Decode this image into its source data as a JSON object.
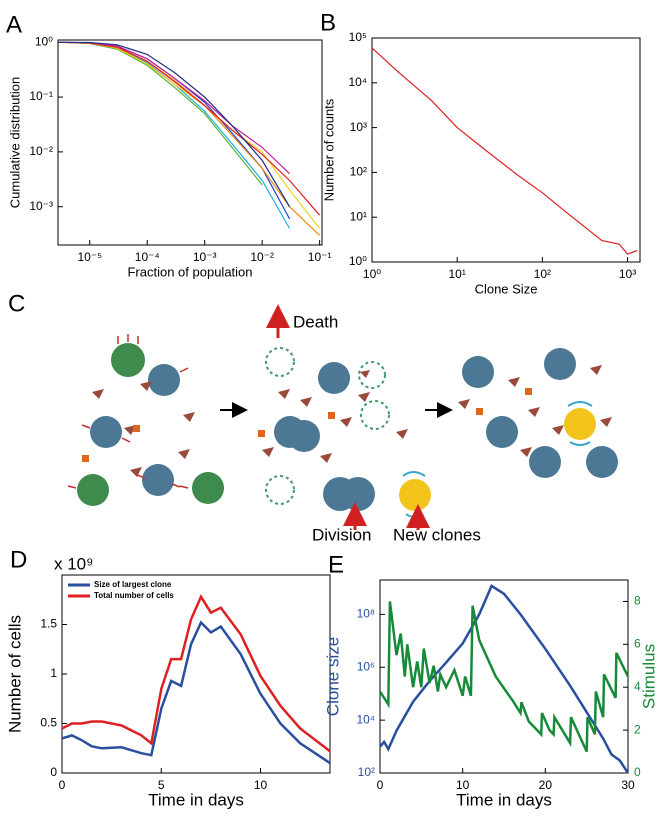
{
  "chart_data": [
    {
      "type": "line",
      "panel": "A",
      "xlabel": "Fraction of population",
      "ylabel": "Cumulative distribution",
      "xscale": "log",
      "yscale": "log",
      "xlim": [
        2.8e-06,
        0.11
      ],
      "ylim": [
        0.0002,
        1.1
      ],
      "xticks": [
        {
          "value": 1e-05,
          "label": "10⁻⁵"
        },
        {
          "value": 0.0001,
          "label": "10⁻⁴"
        },
        {
          "value": 0.001,
          "label": "10⁻³"
        },
        {
          "value": 0.01,
          "label": "10⁻²"
        },
        {
          "value": 0.1,
          "label": "10⁻¹"
        }
      ],
      "yticks": [
        {
          "value": 1,
          "label": "10⁰"
        },
        {
          "value": 0.1,
          "label": "10⁻¹"
        },
        {
          "value": 0.01,
          "label": "10⁻²"
        },
        {
          "value": 0.001,
          "label": "10⁻³"
        }
      ],
      "x": [
        3e-06,
        1e-05,
        3e-05,
        0.0001,
        0.0003,
        0.001,
        0.003,
        0.01,
        0.03,
        0.1
      ],
      "series": [
        {
          "color": "#1f3fd0",
          "values": [
            1,
            0.98,
            0.85,
            0.5,
            0.22,
            0.08,
            0.022,
            0.005,
            0.0006,
            null
          ]
        },
        {
          "color": "#19b0e0",
          "values": [
            1,
            0.97,
            0.8,
            0.42,
            0.17,
            0.055,
            0.014,
            0.003,
            0.0004,
            null
          ]
        },
        {
          "color": "#5cb030",
          "values": [
            1,
            0.95,
            0.75,
            0.38,
            0.15,
            0.05,
            0.012,
            0.0025,
            null,
            null
          ]
        },
        {
          "color": "#f0d020",
          "values": [
            1,
            0.96,
            0.78,
            0.4,
            0.17,
            0.07,
            0.025,
            0.01,
            0.002,
            0.0004
          ]
        },
        {
          "color": "#f08a10",
          "values": [
            1,
            0.96,
            0.8,
            0.45,
            0.2,
            0.07,
            0.02,
            0.005,
            0.001,
            0.0003
          ]
        },
        {
          "color": "#e02020",
          "values": [
            1,
            0.97,
            0.82,
            0.45,
            0.19,
            0.07,
            0.025,
            0.009,
            0.003,
            0.0007
          ]
        },
        {
          "color": "#c020a0",
          "values": [
            1,
            0.98,
            0.85,
            0.5,
            0.22,
            0.085,
            0.03,
            0.012,
            0.004,
            null
          ]
        },
        {
          "color": "#203080",
          "values": [
            1,
            0.99,
            0.9,
            0.6,
            0.28,
            0.1,
            0.03,
            0.007,
            0.001,
            null
          ]
        }
      ]
    },
    {
      "type": "line",
      "panel": "B",
      "xlabel": "Clone Size",
      "ylabel": "Number of counts",
      "xscale": "log",
      "yscale": "log",
      "xlim": [
        1,
        1400
      ],
      "ylim": [
        1,
        100000
      ],
      "xticks": [
        {
          "value": 1,
          "label": "10⁰"
        },
        {
          "value": 10,
          "label": "10¹"
        },
        {
          "value": 100,
          "label": "10²"
        },
        {
          "value": 1000,
          "label": "10³"
        }
      ],
      "yticks": [
        {
          "value": 1,
          "label": "10⁰"
        },
        {
          "value": 10,
          "label": "10¹"
        },
        {
          "value": 100,
          "label": "10²"
        },
        {
          "value": 1000,
          "label": "10³"
        },
        {
          "value": 10000,
          "label": "10⁴"
        },
        {
          "value": 100000,
          "label": "10⁵"
        }
      ],
      "x": [
        1,
        2,
        5,
        10,
        20,
        50,
        100,
        200,
        500,
        800,
        1000,
        1300
      ],
      "series": [
        {
          "color": "#e02020",
          "values": [
            60000,
            18000,
            4000,
            1000,
            350,
            90,
            35,
            12,
            3,
            2.5,
            1.5,
            1.8
          ]
        }
      ]
    },
    {
      "type": "line",
      "panel": "D",
      "xlabel": "Time in days",
      "ylabel": "Number of cells",
      "y_multiplier": "x 10⁹",
      "xlim": [
        0,
        13.5
      ],
      "ylim": [
        0,
        2
      ],
      "xticks": [
        0,
        5,
        10
      ],
      "yticks": [
        0,
        0.5,
        1,
        1.5
      ],
      "legend": "upper left",
      "x": [
        0,
        0.5,
        1,
        1.5,
        2,
        3,
        4,
        4.5,
        5,
        5.5,
        6,
        6.5,
        7,
        7.5,
        8,
        9,
        10,
        11,
        12,
        13.5
      ],
      "series": [
        {
          "name": "Size of largest clone",
          "color": "#2a4fa0",
          "values": [
            0.35,
            0.38,
            0.33,
            0.27,
            0.25,
            0.26,
            0.2,
            0.18,
            0.65,
            0.93,
            0.88,
            1.3,
            1.52,
            1.42,
            1.48,
            1.2,
            0.8,
            0.5,
            0.3,
            0.1
          ]
        },
        {
          "name": "Total number of cells",
          "color": "#e02020",
          "values": [
            0.45,
            0.5,
            0.5,
            0.52,
            0.52,
            0.48,
            0.38,
            0.3,
            0.85,
            1.15,
            1.15,
            1.55,
            1.78,
            1.62,
            1.67,
            1.4,
            0.98,
            0.68,
            0.45,
            0.22
          ]
        }
      ]
    },
    {
      "type": "line",
      "panel": "E",
      "xlabel": "Time in days",
      "ylabel": "Clone size",
      "y2label": "Stimulus",
      "xlim": [
        0,
        30
      ],
      "ylim": [
        100,
        2000000000
      ],
      "yscale": "log",
      "y2lim": [
        0,
        9
      ],
      "xticks": [
        0,
        10,
        20,
        30
      ],
      "yticks": [
        {
          "value": 100,
          "label": "10²"
        },
        {
          "value": 10000,
          "label": "10⁴"
        },
        {
          "value": 1000000,
          "label": "10⁶"
        },
        {
          "value": 100000000,
          "label": "10⁸"
        }
      ],
      "y2ticks": [
        0,
        2,
        4,
        6,
        8
      ],
      "series": [
        {
          "color": "#2a4fa0",
          "axis": "y",
          "x": [
            0,
            0.5,
            1,
            2,
            4,
            6,
            8,
            10,
            12,
            13.5,
            15,
            17,
            20,
            23,
            25,
            27,
            28,
            29,
            30
          ],
          "values": [
            1000,
            1500,
            800,
            4000,
            50000,
            300000,
            1500000,
            8000000,
            100000000,
            1200000000,
            600000000,
            100000000,
            5000000,
            200000,
            20000,
            2000,
            500,
            300,
            100
          ]
        },
        {
          "color": "#178a3a",
          "axis": "y2",
          "x": [
            0,
            1,
            1.2,
            2,
            2.5,
            3,
            3.3,
            4,
            4.5,
            5,
            5.3,
            6,
            6.5,
            7,
            7.3,
            8,
            9,
            10,
            10.3,
            11,
            11.2,
            12,
            14,
            16,
            17,
            17.1,
            18,
            19.5,
            19.6,
            20.5,
            21,
            21.1,
            23,
            23.1,
            25,
            25.1,
            26,
            26.1,
            27,
            27.1,
            28.5,
            28.6,
            30
          ],
          "values": [
            3.8,
            3.2,
            8,
            5.5,
            6.5,
            4.5,
            6,
            4,
            5.2,
            4,
            5.8,
            4.2,
            5,
            3.8,
            4.6,
            4,
            4.8,
            3.6,
            4.5,
            3.6,
            7.8,
            6.2,
            4.5,
            3.4,
            2.8,
            3.3,
            2.4,
            1.8,
            2.8,
            2,
            1.8,
            2.6,
            1.4,
            2.6,
            1,
            2.6,
            1.8,
            3.8,
            2.6,
            4.6,
            3.5,
            5.6,
            4.5
          ]
        }
      ]
    }
  ],
  "diagram": {
    "panel": "C",
    "labels": [
      "Death",
      "Division",
      "New clones"
    ]
  }
}
